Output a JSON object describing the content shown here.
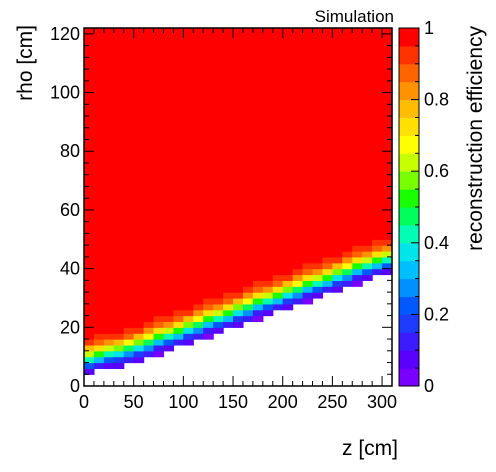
{
  "chart_data": {
    "type": "heatmap",
    "annotation": "Simulation",
    "xlabel": "z [cm]",
    "ylabel": "rho [cm]",
    "zlabel": "reconstruction efficiency",
    "xlim": [
      0,
      310
    ],
    "ylim": [
      0,
      122
    ],
    "zlim": [
      0,
      1
    ],
    "x_ticks": [
      0,
      50,
      100,
      150,
      200,
      250,
      300
    ],
    "y_ticks": [
      0,
      20,
      40,
      60,
      80,
      100,
      120
    ],
    "z_ticks": [
      0,
      0.2,
      0.4,
      0.6,
      0.8,
      1
    ],
    "z_tick_labels": [
      "0",
      "0.2",
      "0.4",
      "0.6",
      "0.8",
      "1"
    ],
    "bin_width_z": 10,
    "bin_width_rho": 2,
    "description": "Efficiency is ~1 above a boundary rising from rho~10 cm at z=0 to rho~40 cm at z=310 cm (region empty below)",
    "boundary_rho_at_z": [
      {
        "z": 0,
        "rho": 4
      },
      {
        "z": 50,
        "rho": 8
      },
      {
        "z": 100,
        "rho": 14
      },
      {
        "z": 150,
        "rho": 20
      },
      {
        "z": 200,
        "rho": 26
      },
      {
        "z": 250,
        "rho": 32
      },
      {
        "z": 300,
        "rho": 38
      }
    ],
    "efficiency_vs_height_above_boundary": [
      {
        "drho": 0,
        "eff": 0.05
      },
      {
        "drho": 2,
        "eff": 0.15
      },
      {
        "drho": 4,
        "eff": 0.35
      },
      {
        "drho": 6,
        "eff": 0.55
      },
      {
        "drho": 8,
        "eff": 0.75
      },
      {
        "drho": 10,
        "eff": 0.9
      },
      {
        "drho": 14,
        "eff": 1.0
      }
    ]
  }
}
